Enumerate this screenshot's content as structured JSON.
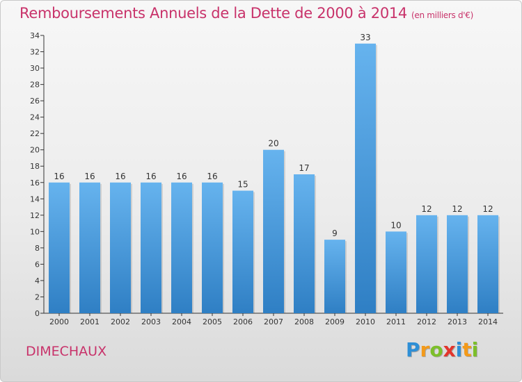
{
  "title": "Remboursements Annuels de la Dette de 2000 à 2014",
  "subtitle": "(en milliers d'€)",
  "commune": "DIMECHAUX",
  "logo": {
    "letters": [
      "P",
      "r",
      "o",
      "x",
      "i",
      "t",
      "i"
    ],
    "colors": [
      "#2e8fd6",
      "#f39a1a",
      "#7cbf2a",
      "#e2352c",
      "#2e8fd6",
      "#f39a1a",
      "#7cbf2a"
    ]
  },
  "colors": {
    "bar": "#4f9fe0",
    "bar_light": "#66b3ee",
    "bar_dark": "#2f7fc4",
    "accent": "#c8326a",
    "axis": "#333333"
  },
  "chart_data": {
    "type": "bar",
    "categories": [
      "2000",
      "2001",
      "2002",
      "2003",
      "2004",
      "2005",
      "2006",
      "2007",
      "2008",
      "2009",
      "2010",
      "2011",
      "2012",
      "2013",
      "2014"
    ],
    "values": [
      16,
      16,
      16,
      16,
      16,
      16,
      15,
      20,
      17,
      9,
      33,
      10,
      12,
      12,
      12
    ],
    "ylim": [
      0,
      34
    ],
    "yticks": [
      0,
      2,
      4,
      6,
      8,
      10,
      12,
      14,
      16,
      18,
      20,
      22,
      24,
      26,
      28,
      30,
      32,
      34
    ],
    "grid": false,
    "legend": "none"
  }
}
